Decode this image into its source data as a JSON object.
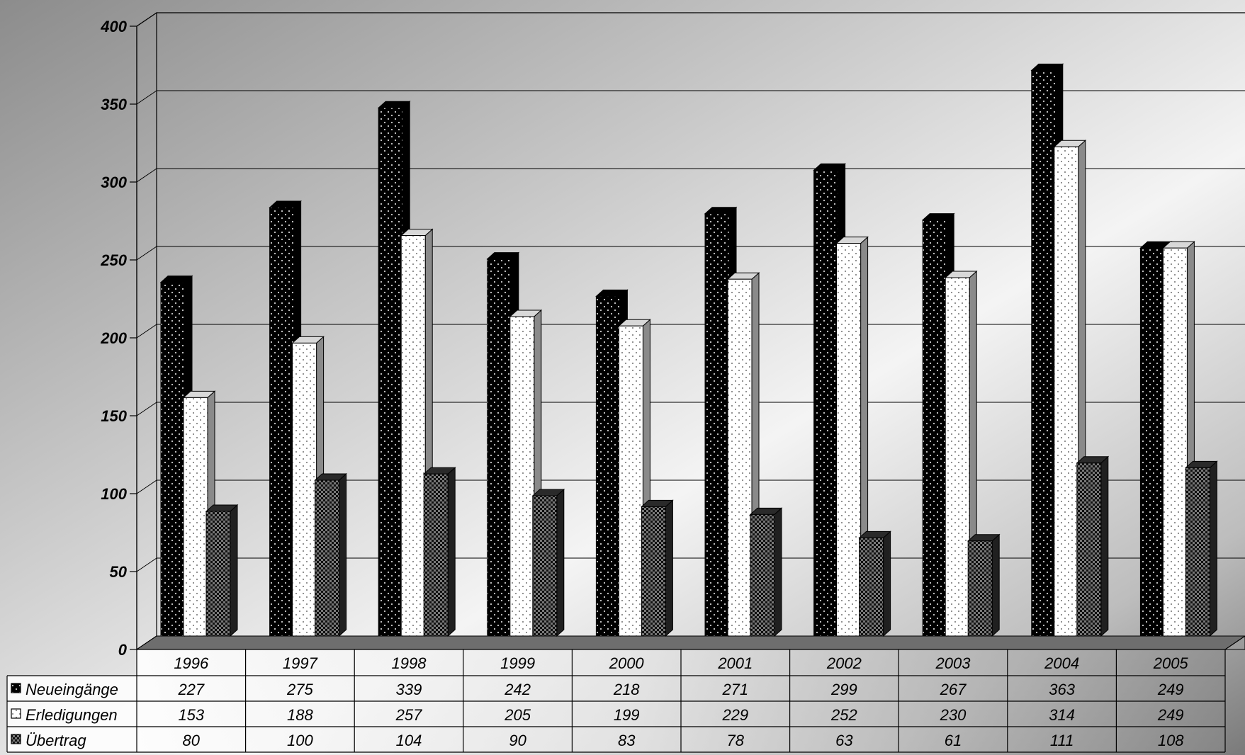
{
  "chart_data": {
    "type": "bar",
    "title": "",
    "xlabel": "",
    "ylabel": "",
    "ylim": [
      0,
      400
    ],
    "yticks": [
      0,
      50,
      100,
      150,
      200,
      250,
      300,
      350,
      400
    ],
    "grid": true,
    "legend": "data-table-left",
    "categories": [
      "1996",
      "1997",
      "1998",
      "1999",
      "2000",
      "2001",
      "2002",
      "2003",
      "2004",
      "2005"
    ],
    "series": [
      {
        "name": "Neueingänge",
        "values": [
          227,
          275,
          339,
          242,
          218,
          271,
          299,
          267,
          363,
          249
        ],
        "color": "#000000",
        "pattern": "dots-white"
      },
      {
        "name": "Erledigungen",
        "values": [
          153,
          188,
          257,
          205,
          199,
          229,
          252,
          230,
          314,
          249
        ],
        "color": "#ffffff",
        "pattern": "dots-dark"
      },
      {
        "name": "Übertrag",
        "values": [
          80,
          100,
          104,
          90,
          83,
          78,
          63,
          61,
          111,
          108
        ],
        "color": "#1a1a1a",
        "pattern": "checker"
      }
    ]
  }
}
